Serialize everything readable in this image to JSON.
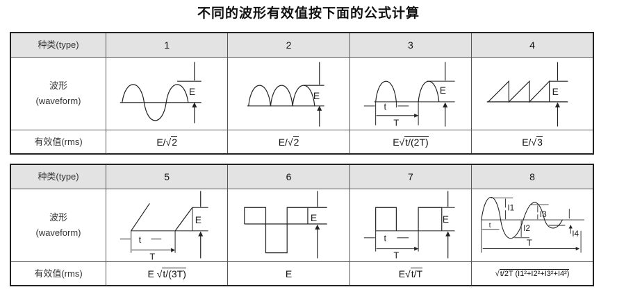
{
  "title": "不同的波形有效值按下面的公式计算",
  "row_labels": {
    "type": "种类(type)",
    "waveform_cn": "波形",
    "waveform_en": "(waveform)",
    "rms": "有效值(rms)"
  },
  "diagram_labels": {
    "E": "E",
    "t": "t",
    "T": "T",
    "I1": "I1",
    "I2": "I2",
    "I3": "I3",
    "I4": "I4"
  },
  "tables": [
    {
      "types": [
        "1",
        "2",
        "3",
        "4"
      ],
      "rms": [
        {
          "pre": "E/√",
          "rad": "2"
        },
        {
          "pre": "E/√",
          "rad": "2"
        },
        {
          "pre": "E√",
          "rad": "t/(2T)"
        },
        {
          "pre": "E/√",
          "rad": "3"
        }
      ]
    },
    {
      "types": [
        "5",
        "6",
        "7",
        "8"
      ],
      "rms": [
        {
          "pre": "E √",
          "rad": "t/(3T)"
        },
        {
          "pre": "E",
          "rad": ""
        },
        {
          "pre": "E√",
          "rad": "t/T"
        },
        {
          "pre": "√",
          "rad": "t/2T (I1²+I2²+I3²+I4²)"
        }
      ]
    }
  ]
}
